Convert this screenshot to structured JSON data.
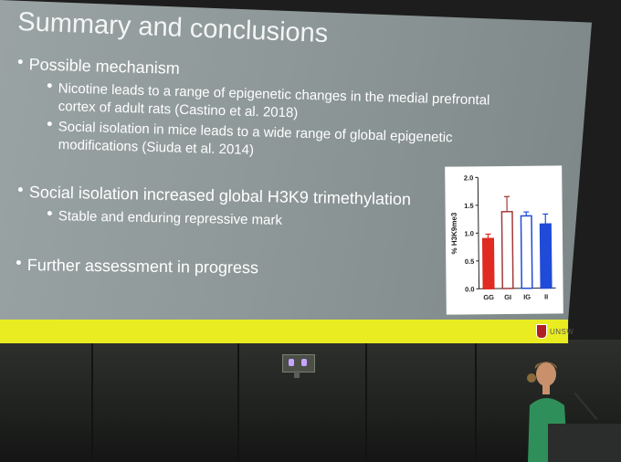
{
  "slide": {
    "title": "Summary and conclusions",
    "bullets": [
      "Possible mechanism",
      "Social isolation increased global H3K9 trimethylation",
      "Further assessment in progress"
    ],
    "sub_bullets": {
      "mechanism_1_line_1": "Nicotine leads to a range of epigenetic changes in the medial prefrontal",
      "mechanism_1_line_2": "cortex of adult rats (Castino et al. 2018)",
      "mechanism_2_line_1": "Social isolation in mice leads to a wide range of global epigenetic",
      "mechanism_2_line_2": "modifications (Siuda et al. 2014)",
      "h3k9": "Stable and enduring repressive mark"
    },
    "footer_logo_text": "UNSW"
  },
  "colors": {
    "footer": "#e9ec21",
    "bar_red": "#e02a22",
    "bar_outline": "#a33a3a",
    "bar_blue": "#1f4bd8"
  },
  "chart_data": {
    "type": "bar",
    "ylabel": "% H3K9me3",
    "categories": [
      "GG",
      "GI",
      "IG",
      "II"
    ],
    "values": [
      0.9,
      1.38,
      1.3,
      1.15
    ],
    "errors": [
      0.08,
      0.27,
      0.07,
      0.18
    ],
    "ylim": [
      0,
      2.0
    ],
    "yticks": [
      "0.0",
      "0.5",
      "1.0",
      "1.5",
      "2.0"
    ],
    "yticks_values": [
      0,
      0.5,
      1.0,
      1.5,
      2.0
    ],
    "fills": [
      "#e02a22",
      "#ffffff",
      "#ffffff",
      "#1f4bd8"
    ],
    "strokes": [
      "#e02a22",
      "#a33a3a",
      "#1f4bd8",
      "#1f4bd8"
    ]
  }
}
